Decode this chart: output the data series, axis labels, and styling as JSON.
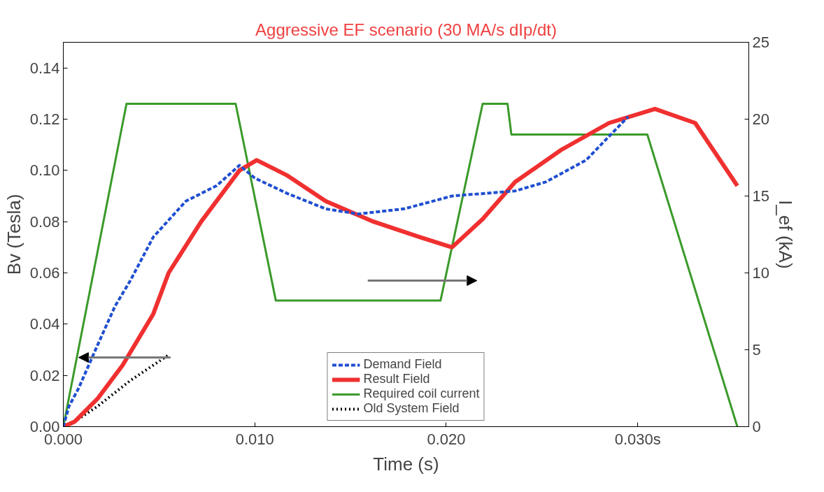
{
  "chart_data": {
    "type": "line",
    "title": "Aggressive EF scenario (30 MA/s dIp/dt)",
    "xlabel": "Time (s)",
    "ylabel": "Bv (Tesla)",
    "y2label": "I_ef (kA)",
    "xlim": [
      0,
      0.0358
    ],
    "xticks": [
      {
        "value": 0,
        "label": "0.000"
      },
      {
        "value": 0.01,
        "label": "0.010"
      },
      {
        "value": 0.02,
        "label": "0.020"
      },
      {
        "value": 0.03,
        "label": "0.030s"
      }
    ],
    "ylim": [
      0,
      0.15
    ],
    "yticks": [
      {
        "value": 0,
        "label": "0.00"
      },
      {
        "value": 0.02,
        "label": "0.02"
      },
      {
        "value": 0.04,
        "label": "0.04"
      },
      {
        "value": 0.06,
        "label": "0.06"
      },
      {
        "value": 0.08,
        "label": "0.08"
      },
      {
        "value": 0.1,
        "label": "0.10"
      },
      {
        "value": 0.12,
        "label": "0.12"
      },
      {
        "value": 0.14,
        "label": "0.14"
      }
    ],
    "y2lim": [
      0,
      25
    ],
    "y2ticks": [
      0,
      5,
      10,
      15,
      20,
      25
    ],
    "grid": false,
    "legend": "bottom",
    "series": [
      {
        "name": "Demand Field",
        "color": "#1f4fd0",
        "line_style": "dashed",
        "x": [
          0,
          0.0003,
          0.0008,
          0.0018,
          0.0027,
          0.0035,
          0.0047,
          0.0064,
          0.008,
          0.0092,
          0.01,
          0.0117,
          0.0137,
          0.0154,
          0.0178,
          0.0203,
          0.0236,
          0.0252,
          0.0273,
          0.0295
        ],
        "values": [
          0,
          0.008,
          0.015,
          0.032,
          0.047,
          0.057,
          0.074,
          0.088,
          0.094,
          0.102,
          0.097,
          0.091,
          0.085,
          0.083,
          0.085,
          0.09,
          0.092,
          0.0955,
          0.104,
          0.121
        ]
      },
      {
        "name": "Result Field",
        "color": "#f03030",
        "line_style": "solid",
        "x": [
          0,
          0.0006,
          0.0018,
          0.0031,
          0.0047,
          0.0055,
          0.0072,
          0.0092,
          0.0101,
          0.0117,
          0.0137,
          0.0162,
          0.0186,
          0.0203,
          0.0219,
          0.0236,
          0.026,
          0.0285,
          0.0309,
          0.033,
          0.0352
        ],
        "values": [
          0,
          0.002,
          0.011,
          0.024,
          0.044,
          0.06,
          0.08,
          0.1,
          0.104,
          0.098,
          0.088,
          0.08,
          0.074,
          0.07,
          0.081,
          0.0955,
          0.108,
          0.1185,
          0.124,
          0.1185,
          0.094
        ]
      },
      {
        "name": "Required coil current",
        "color": "#3a9a2a",
        "line_style": "solid",
        "axis": "y2",
        "x": [
          0,
          0.0033,
          0.009,
          0.0111,
          0.0197,
          0.0219,
          0.0232,
          0.0234,
          0.0305,
          0.0352
        ],
        "values": [
          0,
          21,
          21,
          8.2,
          8.2,
          21,
          21,
          19,
          19,
          0
        ]
      },
      {
        "name": "Old System Field",
        "color": "#000000",
        "line_style": "dotted",
        "x": [
          0.0002,
          0.0018,
          0.0035,
          0.0055
        ],
        "values": [
          0,
          0.008,
          0.018,
          0.028
        ]
      }
    ]
  }
}
